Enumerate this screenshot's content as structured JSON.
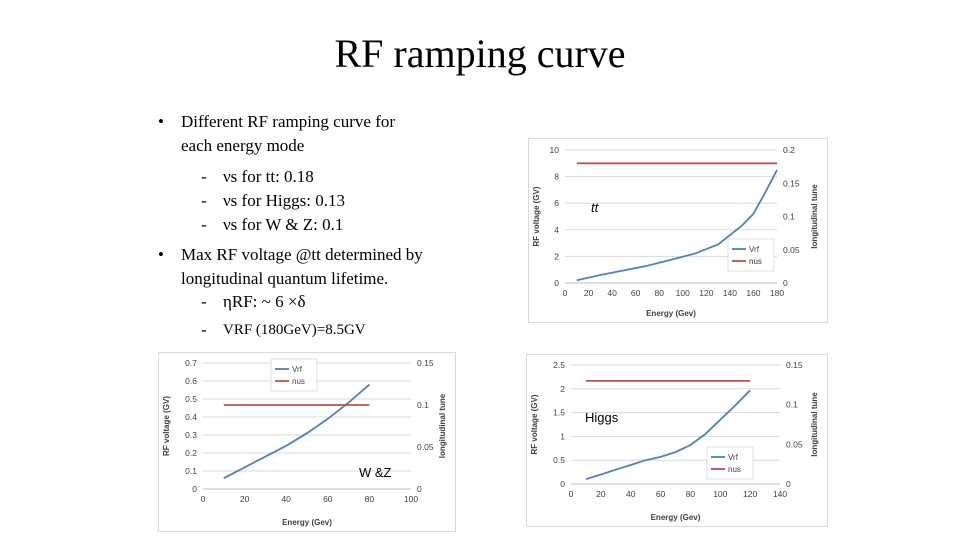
{
  "slide": {
    "title": "RF ramping curve",
    "b1_line1": "Different RF ramping curve for",
    "b1_line2": "each energy mode",
    "s1": "νs for tt:  0.18",
    "s2": "νs for Higgs:  0.13",
    "s3": "νs for W & Z:  0.1",
    "b2_line1": "Max RF voltage @tt determined by",
    "b2_line2": "longitudinal quantum lifetime.",
    "s4": "ηRF: ~ 6 ×δ",
    "s5": "VRF (180GeV)=8.5GV",
    "bullet_char": "•",
    "dash_char": "-"
  },
  "colors": {
    "vrf": "#4f81bd",
    "nus": "#c0504d",
    "grid": "#d9d9d9",
    "axis_text": "#404040"
  },
  "chart_data": [
    {
      "id": "tt",
      "type": "line",
      "annotation": "tt",
      "xlabel": "Energy (Gev)",
      "ylabel": "RF voltage (GV)",
      "y2label": "longitudinal tune",
      "xlim": [
        0,
        180
      ],
      "ylim": [
        0,
        10
      ],
      "y2lim": [
        0,
        0.2
      ],
      "xticks": [
        0,
        20,
        40,
        60,
        80,
        100,
        120,
        140,
        160,
        180
      ],
      "yticks": [
        0,
        2,
        4,
        6,
        8,
        10
      ],
      "y2ticks": [
        0,
        0.05,
        0.1,
        0.15,
        0.2
      ],
      "legend_position": "bottom-right",
      "series": [
        {
          "name": "Vrf",
          "axis": "left",
          "x": [
            10,
            30,
            50,
            70,
            90,
            110,
            130,
            150,
            160,
            170,
            180
          ],
          "y": [
            0.2,
            0.6,
            0.95,
            1.3,
            1.75,
            2.2,
            2.9,
            4.3,
            5.2,
            6.8,
            8.5
          ]
        },
        {
          "name": "nus",
          "axis": "right",
          "x": [
            10,
            180
          ],
          "y": [
            0.18,
            0.18
          ]
        }
      ]
    },
    {
      "id": "wz",
      "type": "line",
      "annotation": "W &Z",
      "xlabel": "Energy (Gev)",
      "ylabel": "RF voltage (GV)",
      "y2label": "longitudinal tune",
      "xlim": [
        0,
        100
      ],
      "ylim": [
        0,
        0.7
      ],
      "y2lim": [
        0,
        0.15
      ],
      "xticks": [
        0,
        20,
        40,
        60,
        80,
        100
      ],
      "yticks": [
        0,
        0.1,
        0.2,
        0.3,
        0.4,
        0.5,
        0.6,
        0.7
      ],
      "y2ticks": [
        0,
        0.05,
        0.1,
        0.15
      ],
      "legend_position": "top-center",
      "series": [
        {
          "name": "Vrf",
          "axis": "left",
          "x": [
            10,
            20,
            30,
            40,
            50,
            60,
            70,
            80
          ],
          "y": [
            0.06,
            0.12,
            0.18,
            0.24,
            0.31,
            0.39,
            0.48,
            0.58
          ]
        },
        {
          "name": "nus",
          "axis": "right",
          "x": [
            10,
            80
          ],
          "y": [
            0.1,
            0.1
          ]
        }
      ]
    },
    {
      "id": "higgs",
      "type": "line",
      "annotation": "Higgs",
      "xlabel": "Energy (Gev)",
      "ylabel": "RF voltage (GV)",
      "y2label": "longitudinal tune",
      "xlim": [
        0,
        140
      ],
      "ylim": [
        0,
        2.5
      ],
      "y2lim": [
        0,
        0.15
      ],
      "xticks": [
        0,
        20,
        40,
        60,
        80,
        100,
        120,
        140
      ],
      "yticks": [
        0,
        0.5,
        1,
        1.5,
        2,
        2.5
      ],
      "y2ticks": [
        0,
        0.05,
        0.1,
        0.15
      ],
      "legend_position": "bottom-right",
      "series": [
        {
          "name": "Vrf",
          "axis": "left",
          "x": [
            10,
            20,
            30,
            40,
            50,
            60,
            70,
            80,
            90,
            100,
            110,
            120
          ],
          "y": [
            0.1,
            0.2,
            0.3,
            0.4,
            0.5,
            0.57,
            0.67,
            0.82,
            1.05,
            1.35,
            1.65,
            1.97
          ]
        },
        {
          "name": "nus",
          "axis": "right",
          "x": [
            10,
            120
          ],
          "y": [
            0.13,
            0.13
          ]
        }
      ]
    }
  ]
}
